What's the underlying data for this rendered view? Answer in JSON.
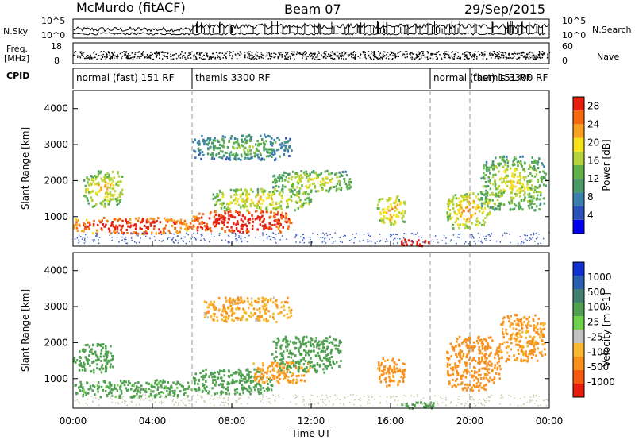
{
  "header": {
    "station": "McMurdo (fitACF)",
    "beam": "Beam 07",
    "date": "29/Sep/2015"
  },
  "noise_panel": {
    "left_label": "N.Sky",
    "left_ticks": [
      "10^5",
      "10^0"
    ],
    "right_ticks": [
      "10^5",
      "10^0"
    ],
    "right_label": "N.Search"
  },
  "freq_panel": {
    "left_label_1": "Freq.",
    "left_label_2": "[MHz]",
    "left_ticks": [
      "18",
      "8"
    ],
    "right_ticks": [
      "60",
      "0"
    ],
    "right_label": "Nave"
  },
  "cpid": {
    "label": "CPID",
    "segments": [
      {
        "start": 0,
        "end": 6,
        "text": "normal (fast) 151 RF"
      },
      {
        "start": 6,
        "end": 18,
        "text": "themis 3300 RF"
      },
      {
        "start": 18,
        "end": 24,
        "text": "normal (fast) 151 RF"
      },
      {
        "start": 20,
        "end": 24,
        "text": "themis 3300 RF"
      }
    ]
  },
  "colors": {
    "power_scale": [
      "#0000ee",
      "#2a52b8",
      "#3a7fae",
      "#4a9a68",
      "#5fb24a",
      "#b6d23a",
      "#f5e21a",
      "#f8a020",
      "#f56a10",
      "#e81e10"
    ],
    "velocity_scale": [
      "#e81e10",
      "#f55a10",
      "#f8901c",
      "#f8b830",
      "#c0c0c0",
      "#6fd04a",
      "#4fa050",
      "#3f8070",
      "#2a60b0",
      "#1030d0"
    ]
  },
  "chart_data": {
    "type": "heatmap",
    "x_label": "Time UT",
    "x_ticks": [
      "00:00",
      "04:00",
      "08:00",
      "12:00",
      "16:00",
      "20:00",
      "00:00"
    ],
    "xlim": [
      0,
      24
    ],
    "panels": [
      {
        "name": "power",
        "ylabel": "Slant Range [km]",
        "y_ticks": [
          1000,
          2000,
          3000,
          4000
        ],
        "ylim": [
          180,
          4500
        ],
        "colorbar_label": "Power [dB]",
        "colorbar_ticks": [
          "4",
          "8",
          "12",
          "16",
          "20",
          "24",
          "28"
        ],
        "colorbar_range": [
          0,
          30
        ],
        "blobs": [
          {
            "t": [
              0.0,
              6.0
            ],
            "r": [
              550,
              1000
            ],
            "v": 22
          },
          {
            "t": [
              0.5,
              2.5
            ],
            "r": [
              1300,
              2300
            ],
            "v": 12
          },
          {
            "t": [
              6.0,
              11.0
            ],
            "r": [
              600,
              1200
            ],
            "v": 24
          },
          {
            "t": [
              7.0,
              12.0
            ],
            "r": [
              1200,
              1800
            ],
            "v": 12
          },
          {
            "t": [
              10.0,
              14.0
            ],
            "r": [
              1700,
              2300
            ],
            "v": 10
          },
          {
            "t": [
              6.0,
              11.0
            ],
            "r": [
              2600,
              3300
            ],
            "v": 6
          },
          {
            "t": [
              15.3,
              16.7
            ],
            "r": [
              800,
              1600
            ],
            "v": 14
          },
          {
            "t": [
              16.5,
              18.2
            ],
            "r": [
              200,
              400
            ],
            "v": 28
          },
          {
            "t": [
              18.8,
              21.0
            ],
            "r": [
              700,
              1700
            ],
            "v": 14
          },
          {
            "t": [
              20.5,
              23.8
            ],
            "r": [
              1200,
              2700
            ],
            "v": 10
          }
        ]
      },
      {
        "name": "velocity",
        "ylabel": "Slant Range [km]",
        "y_ticks": [
          1000,
          2000,
          3000,
          4000
        ],
        "ylim": [
          180,
          4500
        ],
        "colorbar_label": "Velocity [m s-1]",
        "colorbar_ticks": [
          "1000",
          "500",
          "100",
          "25",
          "-25",
          "-100",
          "-500",
          "-1000"
        ],
        "colorbar_range": [
          -1000,
          1000
        ],
        "blobs": [
          {
            "t": [
              0.0,
              6.0
            ],
            "r": [
              500,
              1000
            ],
            "v": 150
          },
          {
            "t": [
              0.0,
              2.0
            ],
            "r": [
              1200,
              2000
            ],
            "v": 200
          },
          {
            "t": [
              6.0,
              10.0
            ],
            "r": [
              600,
              1300
            ],
            "v": 250
          },
          {
            "t": [
              9.0,
              12.0
            ],
            "r": [
              900,
              1500
            ],
            "v": -120
          },
          {
            "t": [
              10.0,
              13.5
            ],
            "r": [
              1200,
              2200
            ],
            "v": 200
          },
          {
            "t": [
              6.5,
              11.0
            ],
            "r": [
              2600,
              3300
            ],
            "v": -80
          },
          {
            "t": [
              15.3,
              16.7
            ],
            "r": [
              800,
              1600
            ],
            "v": -150
          },
          {
            "t": [
              16.5,
              18.2
            ],
            "r": [
              200,
              400
            ],
            "v": 300
          },
          {
            "t": [
              18.8,
              21.5
            ],
            "r": [
              700,
              2200
            ],
            "v": -300
          },
          {
            "t": [
              21.5,
              23.8
            ],
            "r": [
              1500,
              2800
            ],
            "v": -120
          }
        ]
      }
    ]
  }
}
